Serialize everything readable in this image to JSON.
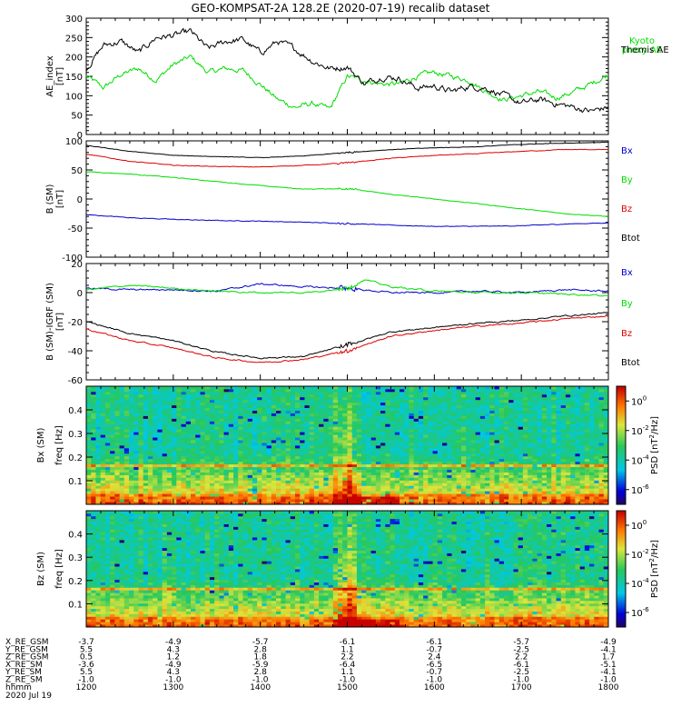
{
  "title": "GEO-KOMPSAT-2A 128.2E (2020-07-19) recalib dataset",
  "colors": {
    "black": "#000000",
    "green": "#00dd00",
    "red": "#dd0000",
    "blue": "#0000cc"
  },
  "time_axis": {
    "hours": [
      12,
      13,
      14,
      15,
      16,
      17,
      18
    ],
    "tick_labels": [
      "1200",
      "1300",
      "1400",
      "1500",
      "1600",
      "1700",
      "1800"
    ]
  },
  "ephemeris": {
    "rows": [
      {
        "label": "X_RE_GSM",
        "values": [
          "-3.7",
          "-4.9",
          "-5.7",
          "-6.1",
          "-6.1",
          "-5.7",
          "-4.9"
        ]
      },
      {
        "label": "Y_RE_GSM",
        "values": [
          "5.5",
          "4.3",
          "2.8",
          "1.1",
          "-0.7",
          "-2.5",
          "-4.1"
        ]
      },
      {
        "label": "Z_RE_GSM",
        "values": [
          "0.5",
          "1.2",
          "1.8",
          "2.2",
          "2.4",
          "2.2",
          "1.7"
        ]
      },
      {
        "label": "X_RE_SM",
        "values": [
          "-3.6",
          "-4.9",
          "-5.9",
          "-6.4",
          "-6.5",
          "-6.1",
          "-5.1"
        ]
      },
      {
        "label": "Y_RE_SM",
        "values": [
          "5.5",
          "4.3",
          "2.8",
          "1.1",
          "-0.7",
          "-2.5",
          "-4.1"
        ]
      },
      {
        "label": "Z_RE_SM",
        "values": [
          "-1.0",
          "-1.0",
          "-1.0",
          "-1.0",
          "-1.0",
          "-1.0",
          "-1.0"
        ]
      }
    ],
    "hhmm_label": "hhmm",
    "date_label": "2020 Jul 19"
  },
  "chart_data": [
    {
      "type": "line",
      "ylabel": "AE_index [nT]",
      "ylim": [
        0,
        300
      ],
      "yticks": [
        0,
        50,
        100,
        150,
        200,
        250,
        300
      ],
      "series": [
        {
          "name": "Kyoto proxy AE",
          "color": "#00dd00",
          "x": [
            12.0,
            12.2,
            12.4,
            12.6,
            12.8,
            13.0,
            13.2,
            13.4,
            13.6,
            13.8,
            14.0,
            14.2,
            14.4,
            14.6,
            14.8,
            15.0,
            15.2,
            15.4,
            15.6,
            15.8,
            16.0,
            16.2,
            16.4,
            16.6,
            16.8,
            17.0,
            17.2,
            17.4,
            17.6,
            17.8,
            18.0
          ],
          "y": [
            150,
            120,
            155,
            170,
            140,
            180,
            200,
            160,
            170,
            165,
            130,
            90,
            70,
            80,
            65,
            150,
            140,
            130,
            130,
            150,
            160,
            150,
            140,
            110,
            90,
            100,
            110,
            95,
            110,
            130,
            155
          ]
        },
        {
          "name": "Themis AE",
          "color": "#000000",
          "x": [
            12.0,
            12.2,
            12.4,
            12.6,
            12.8,
            13.0,
            13.2,
            13.4,
            13.6,
            13.8,
            14.0,
            14.2,
            14.4,
            14.6,
            14.8,
            15.0,
            15.2,
            15.4,
            15.6,
            15.8,
            16.0,
            16.2,
            16.4,
            16.6,
            16.8,
            17.0,
            17.2,
            17.4,
            17.6,
            17.8,
            18.0
          ],
          "y": [
            170,
            230,
            240,
            210,
            250,
            255,
            265,
            220,
            240,
            245,
            210,
            240,
            220,
            190,
            170,
            175,
            130,
            150,
            145,
            120,
            125,
            110,
            125,
            120,
            100,
            80,
            90,
            80,
            70,
            60,
            70
          ]
        }
      ]
    },
    {
      "type": "line",
      "ylabel": "B (SM) [nT]",
      "ylim": [
        -100,
        100
      ],
      "yticks": [
        -100,
        -50,
        0,
        50,
        100
      ],
      "series": [
        {
          "name": "Bx",
          "color": "#0000cc",
          "x": [
            12.0,
            12.5,
            13.0,
            13.5,
            14.0,
            14.5,
            15.0,
            15.5,
            16.0,
            16.5,
            17.0,
            17.5,
            18.0
          ],
          "y": [
            -27,
            -32,
            -35,
            -37,
            -38,
            -40,
            -42,
            -45,
            -47,
            -47,
            -46,
            -43,
            -41
          ]
        },
        {
          "name": "By",
          "color": "#00dd00",
          "x": [
            12.0,
            12.5,
            13.0,
            13.5,
            14.0,
            14.5,
            15.0,
            15.5,
            16.0,
            16.5,
            17.0,
            17.5,
            18.0
          ],
          "y": [
            47,
            43,
            37,
            30,
            23,
            17,
            18,
            8,
            0,
            -8,
            -17,
            -25,
            -30
          ]
        },
        {
          "name": "Bz",
          "color": "#dd0000",
          "x": [
            12.0,
            12.5,
            13.0,
            13.5,
            14.0,
            14.5,
            15.0,
            15.5,
            16.0,
            16.5,
            17.0,
            17.5,
            18.0
          ],
          "y": [
            77,
            65,
            58,
            56,
            55,
            58,
            62,
            70,
            75,
            78,
            82,
            85,
            85
          ]
        },
        {
          "name": "Btot",
          "color": "#000000",
          "x": [
            12.0,
            12.5,
            13.0,
            13.5,
            14.0,
            14.5,
            15.0,
            15.5,
            16.0,
            16.5,
            17.0,
            17.5,
            18.0
          ],
          "y": [
            92,
            82,
            75,
            73,
            71,
            74,
            80,
            85,
            88,
            90,
            94,
            96,
            98
          ]
        }
      ]
    },
    {
      "type": "line",
      "ylabel": "B (SM)-IGRF (SM) [nT]",
      "ylim": [
        -60,
        20
      ],
      "yticks": [
        -60,
        -40,
        -20,
        0,
        20
      ],
      "series": [
        {
          "name": "Bx",
          "color": "#0000cc",
          "x": [
            12.0,
            12.5,
            13.0,
            13.5,
            14.0,
            14.5,
            15.0,
            15.5,
            16.0,
            16.5,
            17.0,
            17.5,
            18.0
          ],
          "y": [
            3,
            2,
            2,
            1,
            6,
            4,
            3,
            0,
            0,
            1,
            0,
            2,
            1
          ]
        },
        {
          "name": "By",
          "color": "#00dd00",
          "x": [
            12.0,
            12.5,
            13.0,
            13.5,
            14.0,
            14.5,
            15.0,
            15.2,
            15.5,
            16.0,
            16.5,
            17.0,
            17.5,
            18.0
          ],
          "y": [
            2,
            5,
            3,
            1,
            0,
            0,
            3,
            9,
            4,
            1,
            0,
            0,
            -1,
            -2
          ]
        },
        {
          "name": "Bz",
          "color": "#dd0000",
          "x": [
            12.0,
            12.5,
            13.0,
            13.5,
            14.0,
            14.5,
            15.0,
            15.5,
            16.0,
            16.5,
            17.0,
            17.5,
            18.0
          ],
          "y": [
            -25,
            -33,
            -38,
            -45,
            -48,
            -46,
            -40,
            -30,
            -26,
            -23,
            -21,
            -18,
            -16
          ]
        },
        {
          "name": "Btot",
          "color": "#000000",
          "x": [
            12.0,
            12.5,
            13.0,
            13.5,
            14.0,
            14.5,
            15.0,
            15.5,
            16.0,
            16.5,
            17.0,
            17.5,
            18.0
          ],
          "y": [
            -20,
            -28,
            -33,
            -41,
            -45,
            -44,
            -36,
            -27,
            -24,
            -21,
            -19,
            -16,
            -14
          ]
        }
      ]
    },
    {
      "type": "heatmap",
      "component": "Bx (SM)",
      "ylabel": "freq [Hz]",
      "ylim": [
        0,
        0.5
      ],
      "yticks": [
        0.1,
        0.2,
        0.3,
        0.4
      ],
      "colorbar_label": "PSD [nT^2/Hz]",
      "colorbar_ticks": [
        "10^0",
        "10^-2",
        "10^-4",
        "10^-6"
      ],
      "colorbar_log_range": [
        -7,
        1
      ],
      "features": {
        "enhancement_hour": 15.0,
        "harmonic_line_hz": 0.17
      }
    },
    {
      "type": "heatmap",
      "component": "Bz (SM)",
      "ylabel": "freq [Hz]",
      "ylim": [
        0,
        0.5
      ],
      "yticks": [
        0.1,
        0.2,
        0.3,
        0.4
      ],
      "colorbar_label": "PSD [nT^2/Hz]",
      "colorbar_ticks": [
        "10^0",
        "10^-2",
        "10^-4",
        "10^-6"
      ],
      "colorbar_log_range": [
        -7,
        1
      ],
      "features": {
        "enhancement_hour": 15.0,
        "harmonic_line_hz": 0.17
      }
    }
  ]
}
